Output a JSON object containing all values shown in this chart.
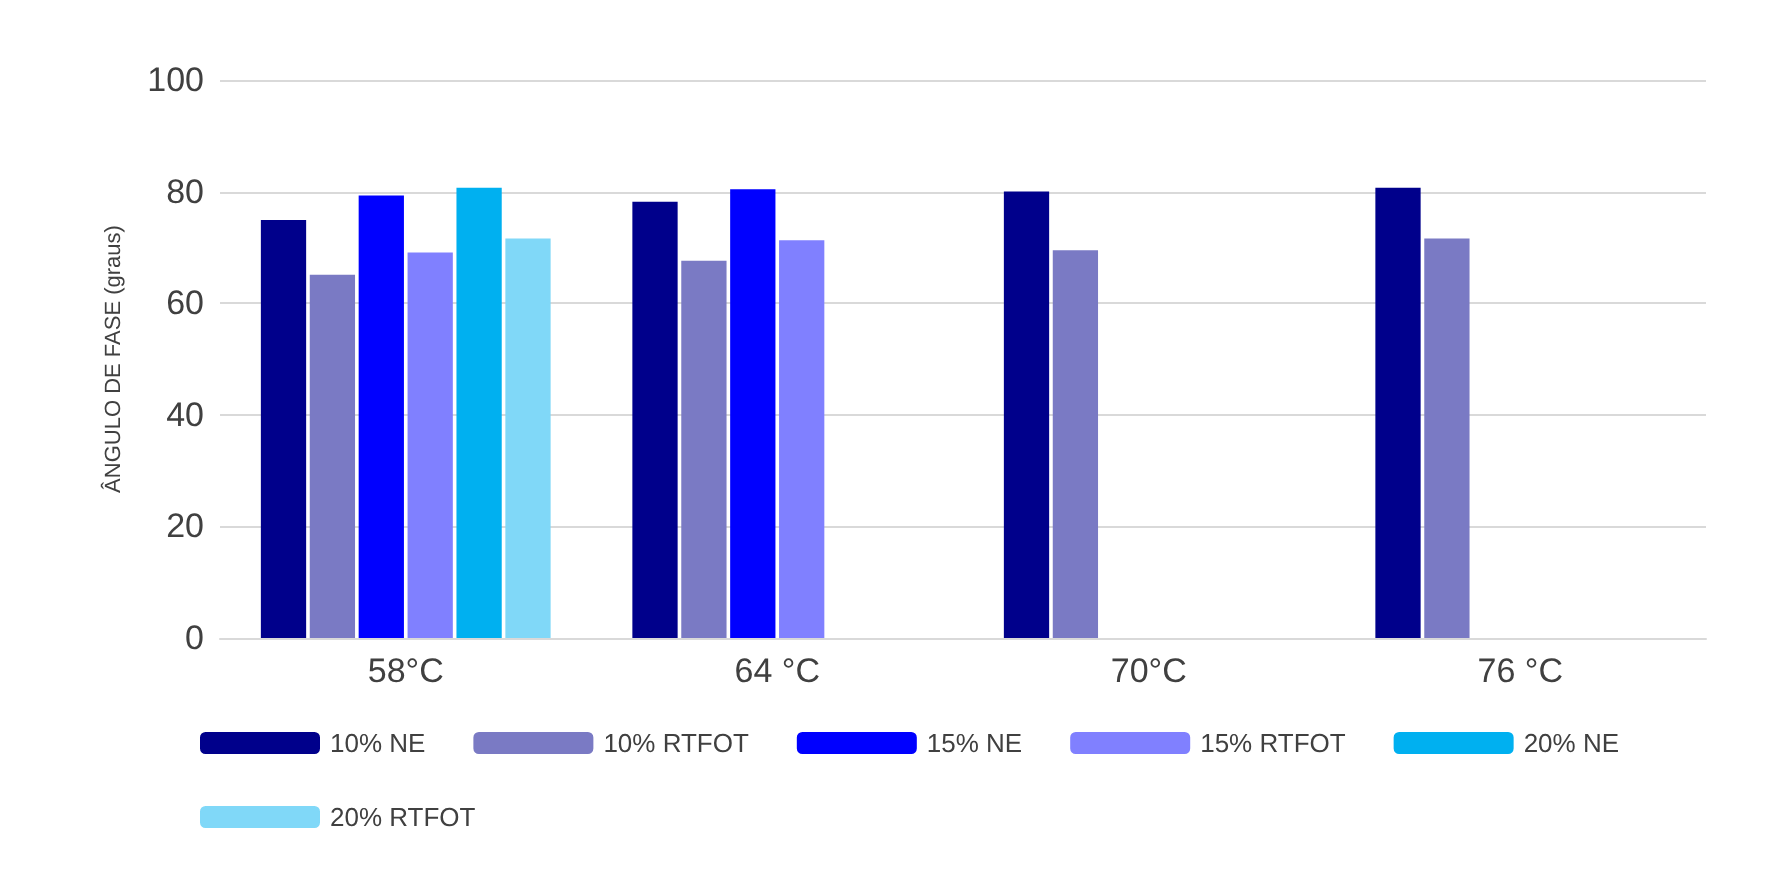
{
  "chart_data": {
    "type": "bar",
    "ylabel": "ÂNGULO DE FASE (graus)",
    "categories": [
      "58°C",
      "64 °C",
      "70°C",
      "76 °C"
    ],
    "series": [
      {
        "name": "10% NE",
        "color": "#00008b",
        "values": [
          74.9,
          78.2,
          80,
          80.7
        ]
      },
      {
        "name": "10% RTFOT",
        "color": "#7a7ac4",
        "values": [
          65.1,
          67.6,
          69.5,
          71.6
        ]
      },
      {
        "name": "15% NE",
        "color": "#0000ff",
        "values": [
          79.3,
          80.4,
          null,
          null
        ]
      },
      {
        "name": "15% RTFOT",
        "color": "#8080ff",
        "values": [
          69.1,
          71.3,
          null,
          null
        ]
      },
      {
        "name": "20% NE",
        "color": "#00b0f0",
        "values": [
          80.7,
          null,
          null,
          null
        ]
      },
      {
        "name": "20% RTFOT",
        "color": "#80d8f8",
        "values": [
          71.6,
          null,
          null,
          null
        ]
      }
    ],
    "ylim": [
      0,
      100
    ],
    "yticks": [
      0,
      20,
      40,
      60,
      80,
      100
    ],
    "grid": "y",
    "legend": "bottom"
  }
}
